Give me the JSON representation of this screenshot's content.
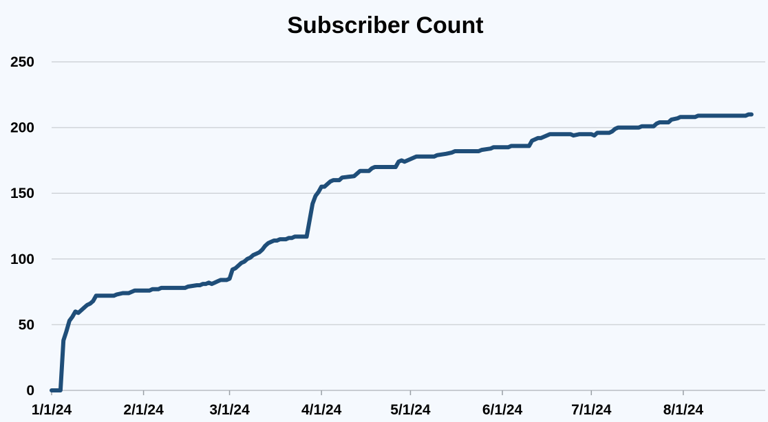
{
  "chart_data": {
    "type": "line",
    "title": "Subscriber Count",
    "xlabel": "",
    "ylabel": "",
    "x_ticks": [
      "1/1/24",
      "2/1/24",
      "3/1/24",
      "4/1/24",
      "5/1/24",
      "6/1/24",
      "7/1/24",
      "8/1/24"
    ],
    "ylim": [
      0,
      250
    ],
    "y_ticks": [
      0,
      50,
      100,
      150,
      200,
      250
    ],
    "xlim": [
      "2024-01-01",
      "2024-08-24"
    ],
    "grid": true,
    "legend": "none",
    "series": [
      {
        "color": "#1f4e79",
        "points": [
          [
            "2024-01-01",
            0
          ],
          [
            "2024-01-04",
            0
          ],
          [
            "2024-01-05",
            38
          ],
          [
            "2024-01-06",
            45
          ],
          [
            "2024-01-07",
            53
          ],
          [
            "2024-01-08",
            56
          ],
          [
            "2024-01-09",
            60
          ],
          [
            "2024-01-10",
            59
          ],
          [
            "2024-01-11",
            61
          ],
          [
            "2024-01-12",
            63
          ],
          [
            "2024-01-13",
            65
          ],
          [
            "2024-01-14",
            66
          ],
          [
            "2024-01-15",
            68
          ],
          [
            "2024-01-16",
            72
          ],
          [
            "2024-01-22",
            72
          ],
          [
            "2024-01-23",
            73
          ],
          [
            "2024-01-25",
            74
          ],
          [
            "2024-01-27",
            74
          ],
          [
            "2024-01-29",
            76
          ],
          [
            "2024-02-03",
            76
          ],
          [
            "2024-02-04",
            77
          ],
          [
            "2024-02-06",
            77
          ],
          [
            "2024-02-07",
            78
          ],
          [
            "2024-02-15",
            78
          ],
          [
            "2024-02-16",
            79
          ],
          [
            "2024-02-19",
            80
          ],
          [
            "2024-02-20",
            80
          ],
          [
            "2024-02-21",
            81
          ],
          [
            "2024-02-22",
            81
          ],
          [
            "2024-02-23",
            82
          ],
          [
            "2024-02-24",
            81
          ],
          [
            "2024-02-25",
            82
          ],
          [
            "2024-02-26",
            83
          ],
          [
            "2024-02-27",
            84
          ],
          [
            "2024-02-29",
            84
          ],
          [
            "2024-03-01",
            85
          ],
          [
            "2024-03-02",
            92
          ],
          [
            "2024-03-03",
            93
          ],
          [
            "2024-03-05",
            97
          ],
          [
            "2024-03-06",
            98
          ],
          [
            "2024-03-07",
            100
          ],
          [
            "2024-03-08",
            101
          ],
          [
            "2024-03-09",
            103
          ],
          [
            "2024-03-10",
            104
          ],
          [
            "2024-03-11",
            105
          ],
          [
            "2024-03-12",
            107
          ],
          [
            "2024-03-13",
            110
          ],
          [
            "2024-03-14",
            112
          ],
          [
            "2024-03-15",
            113
          ],
          [
            "2024-03-16",
            114
          ],
          [
            "2024-03-17",
            114
          ],
          [
            "2024-03-18",
            115
          ],
          [
            "2024-03-20",
            115
          ],
          [
            "2024-03-21",
            116
          ],
          [
            "2024-03-22",
            116
          ],
          [
            "2024-03-23",
            117
          ],
          [
            "2024-03-27",
            117
          ],
          [
            "2024-03-29",
            142
          ],
          [
            "2024-03-30",
            148
          ],
          [
            "2024-03-31",
            151
          ],
          [
            "2024-04-01",
            155
          ],
          [
            "2024-04-02",
            155
          ],
          [
            "2024-04-03",
            157
          ],
          [
            "2024-04-04",
            159
          ],
          [
            "2024-04-05",
            160
          ],
          [
            "2024-04-07",
            160
          ],
          [
            "2024-04-08",
            162
          ],
          [
            "2024-04-12",
            163
          ],
          [
            "2024-04-13",
            165
          ],
          [
            "2024-04-14",
            167
          ],
          [
            "2024-04-17",
            167
          ],
          [
            "2024-04-18",
            169
          ],
          [
            "2024-04-19",
            170
          ],
          [
            "2024-04-26",
            170
          ],
          [
            "2024-04-27",
            174
          ],
          [
            "2024-04-28",
            175
          ],
          [
            "2024-04-29",
            174
          ],
          [
            "2024-05-01",
            176
          ],
          [
            "2024-05-02",
            177
          ],
          [
            "2024-05-03",
            178
          ],
          [
            "2024-05-09",
            178
          ],
          [
            "2024-05-10",
            179
          ],
          [
            "2024-05-13",
            180
          ],
          [
            "2024-05-15",
            181
          ],
          [
            "2024-05-16",
            182
          ],
          [
            "2024-05-24",
            182
          ],
          [
            "2024-05-25",
            183
          ],
          [
            "2024-05-28",
            184
          ],
          [
            "2024-05-29",
            185
          ],
          [
            "2024-06-03",
            185
          ],
          [
            "2024-06-04",
            186
          ],
          [
            "2024-06-10",
            186
          ],
          [
            "2024-06-11",
            190
          ],
          [
            "2024-06-13",
            192
          ],
          [
            "2024-06-14",
            192
          ],
          [
            "2024-06-16",
            194
          ],
          [
            "2024-06-17",
            195
          ],
          [
            "2024-06-24",
            195
          ],
          [
            "2024-06-25",
            194
          ],
          [
            "2024-06-27",
            195
          ],
          [
            "2024-07-01",
            195
          ],
          [
            "2024-07-02",
            194
          ],
          [
            "2024-07-03",
            196
          ],
          [
            "2024-07-07",
            196
          ],
          [
            "2024-07-08",
            197
          ],
          [
            "2024-07-09",
            199
          ],
          [
            "2024-07-10",
            200
          ],
          [
            "2024-07-17",
            200
          ],
          [
            "2024-07-18",
            201
          ],
          [
            "2024-07-22",
            201
          ],
          [
            "2024-07-23",
            203
          ],
          [
            "2024-07-24",
            204
          ],
          [
            "2024-07-27",
            204
          ],
          [
            "2024-07-28",
            206
          ],
          [
            "2024-07-30",
            207
          ],
          [
            "2024-07-31",
            208
          ],
          [
            "2024-08-05",
            208
          ],
          [
            "2024-08-06",
            209
          ],
          [
            "2024-08-22",
            209
          ],
          [
            "2024-08-23",
            210
          ],
          [
            "2024-08-24",
            210
          ]
        ]
      }
    ]
  }
}
